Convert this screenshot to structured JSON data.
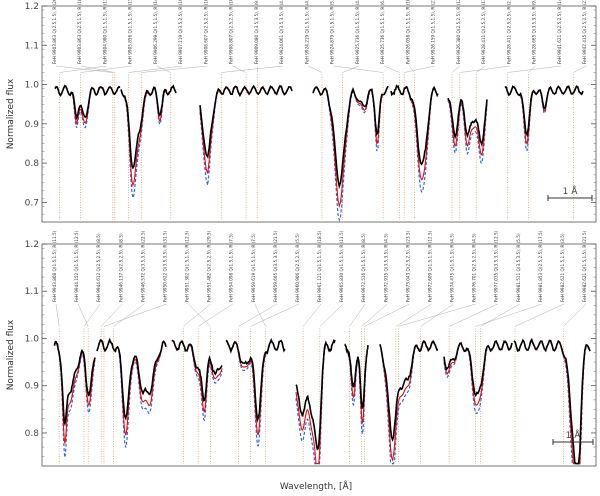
{
  "chart_data": [
    {
      "type": "line",
      "panel": "upper",
      "xlabel": "",
      "ylabel": "Normalized flux",
      "ylim": [
        0.65,
        1.2
      ],
      "yticks": [
        0.7,
        0.8,
        0.9,
        1.0,
        1.1,
        1.2
      ],
      "ytick_labels": [
        "0.7",
        "0.8",
        "0.9",
        "1.0",
        "1.1",
        "1.2"
      ],
      "scale_bar": "1 Å",
      "series_colors": {
        "observed": "#000000",
        "model_red": "#dd1111",
        "model_blue": "#3366dd",
        "lines": "#cc9966"
      },
      "line_ids": [
        "FeH 9903.863 Q(2.5,1.5), R (26.5)",
        "FeH 9903.863 Q(2.5,1.5), R (18.5)",
        "FeH 9904.980 Q(1.5,1.5), R (13.5)",
        "FeH 9905.856 Q(1.5,1.5), R (15.5)",
        "FeH 9906.299 Q(1.5,1.5), R (14.5)",
        "FeH 9907.119 Q(3.5,2.5), R (16.5)",
        "FeH 9908.607 Q(2.5,2.5), R (10.5)",
        "FeH 9908.807 Q(2.5,2.5), R (10.5)",
        "FeH 9909.080 Q(3.5,3.5), R (9.5)",
        "FeH 9924.061 Q(3.5,3.5), R (4.5)",
        "FeH 9924.219 Q(1.5,1.5), R (4.5)",
        "FeH 9924.879 Q(1.5,1.5), R (5.5)",
        "FeH 9925.736 Q(1.5,1.5), R (4.5)",
        "FeH 9925.736 Q(1.5,1.5), R (6.5)",
        "FeH 9926.058 Q(1.5,1.5), R (10.5)",
        "FeH 9926.159 Q(1.5,1.5), R (21.5)",
        "FeH 9926.380 Q(2.5,2.5), R (12.5)",
        "FeH 9928.411 Q(2.5,2.5), R (13.5)",
        "FeH 9928.411 Q(2.5,2.5), R (2.5)",
        "FeH 9928.665 Q(3.5,3.5), R (9.5)",
        "FeH 9941.621 Q(2.5,2.5), R (14.5)",
        "FeH 9942.415 Q(2.5,2.5), R (21.5)"
      ],
      "segments": [
        {
          "label_range": "9903.8–9909.1",
          "observed_min": 0.8,
          "model_min": 0.78
        },
        {
          "label_range": "9924.0–9926.2",
          "observed_min": 0.76,
          "model_min": 0.68
        },
        {
          "label_range": "9928.4–9928.7",
          "observed_min": 0.84,
          "model_min": 0.76
        },
        {
          "label_range": "9941.6–9942.4",
          "observed_min": 0.89,
          "model_min": 0.92
        }
      ]
    },
    {
      "type": "line",
      "panel": "lower",
      "xlabel": "Wavelength, [Å]",
      "ylabel": "Normalized flux",
      "ylim": [
        0.73,
        1.2
      ],
      "yticks": [
        0.8,
        0.9,
        1.0,
        1.1,
        1.2
      ],
      "ytick_labels": [
        "0.8",
        "0.9",
        "1.0",
        "1.1",
        "1.2"
      ],
      "scale_bar": "1 Å",
      "series_colors": {
        "observed": "#000000",
        "model_red": "#dd1111",
        "model_blue": "#3366dd",
        "lines": "#cc9966"
      },
      "line_ids": [
        "FeH 9943.808 Q(1.5,1.5), R (11.5)",
        "FeH 9944.152 Q(1.5,1.5), R (12.5)",
        "FeH 9944.612 Q(2.5,2.5), R (8.5)",
        "FeH 9946.137 Q(2.5,2.5), R (8.5)",
        "FeH 9946.572 Q(3.5,3.5), R (22.5)",
        "FeH 9950.622 Q(3.5,3.5), R (31.5)",
        "FeH 9951.302 Q(1.5,1.5), R (12.5)",
        "FeH 9951.482 Q(2.5,2.5), R (29.5)",
        "FeH 9954.098 Q(1.5,1.5), R (7.5)",
        "FeH 9959.619 Q(1.5,1.5), R (7.5)",
        "FeH 9959.665 Q(3.5,3.5), R (21.5)",
        "FeH 9960.906 Q(2.5,2.5), R (5.5)",
        "FeH 9961.121 Q(1.5,1.5), R (18.5)",
        "FeH 9965.830 Q(1.5,1.5), R (11.5)",
        "FeH 9972.516 Q(1.5,1.5), R (8.5)",
        "FeH 9972.935 Q(3.5,3.5), R (4.5)",
        "FeH 9973.043 Q(2.5,2.5), R (23.5)",
        "FeH 9972.609 Q(1.5,1.5), R (12.5)",
        "FeH 9974.475 Q(1.5,1.5), R (4.5)",
        "FeH 9976.701 Q(2.5,2.5), R (4.5)",
        "FeH 9977.035 Q(3.5,3.5), R (12.5)",
        "FeH 9981.511 Q(3.5,3.5), R (5.5)",
        "FeH 9981.853 Q(2.5,2.5), R (17.5)",
        "FeH 9982.621 Q(1.5,1.5), R (3.5)",
        "FeH 9982.621 Q(1.5,1.5), R (21.5)"
      ],
      "segments": [
        {
          "label_range": "9943.8–9946.6",
          "observed_min": 0.83,
          "model_min": 0.73
        },
        {
          "label_range": "9950.6–9951.5",
          "observed_min": 0.86,
          "model_min": 0.83
        },
        {
          "label_range": "9954.1–9961.1",
          "observed_min": 0.83,
          "model_min": 0.83
        },
        {
          "label_range": "9965.8",
          "observed_min": 0.8,
          "model_min": 0.73
        },
        {
          "label_range": "9972.5–9977.0",
          "observed_min": 0.8,
          "model_min": 0.73
        },
        {
          "label_range": "9981.5–9982.6",
          "observed_min": 0.76,
          "model_min": 0.73
        }
      ]
    }
  ]
}
